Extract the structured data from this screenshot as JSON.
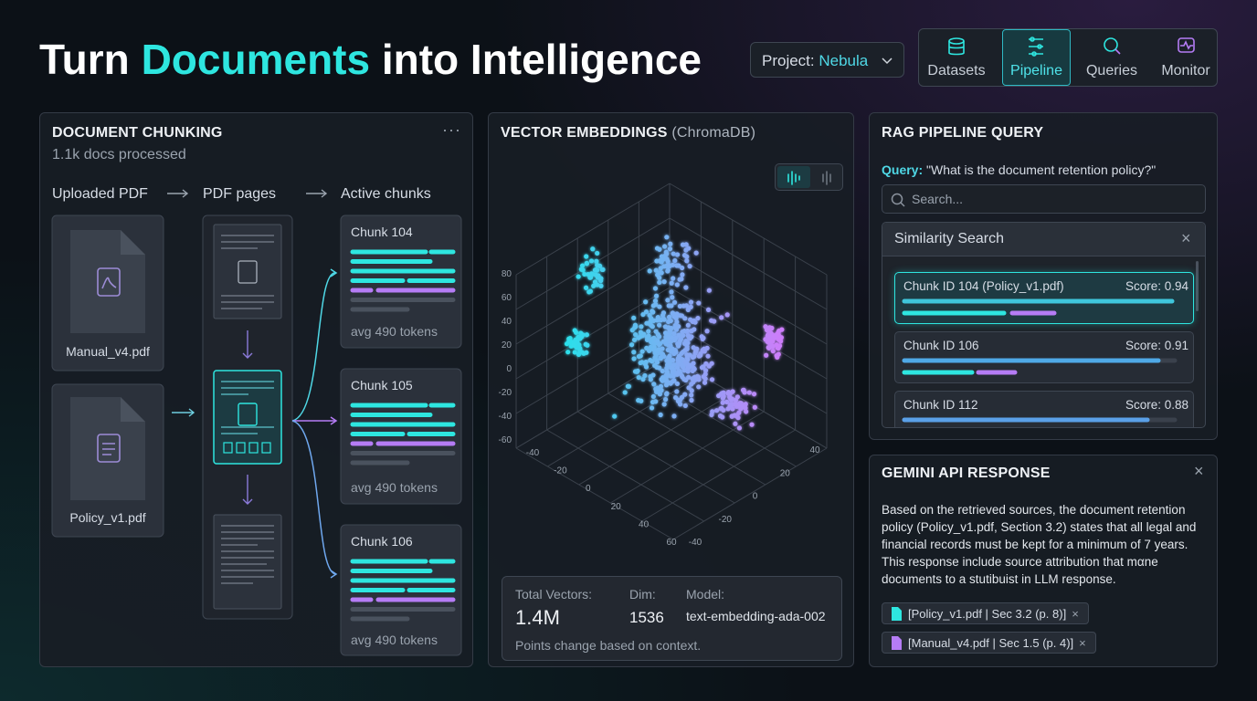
{
  "header": {
    "title_parts": [
      "Turn ",
      "Documents",
      " into Intelligence"
    ],
    "project_label": "Project:",
    "project_value": "Nebula",
    "nav": [
      "Datasets",
      "Pipeline",
      "Queries",
      "Monitor"
    ]
  },
  "chunking": {
    "title": "DOCUMENT CHUNKING",
    "subtitle": "1.1k docs processed",
    "steps": [
      "Uploaded PDF",
      "PDF pages",
      "Active chunks"
    ],
    "files": [
      "Manual_v4.pdf",
      "Policy_v1.pdf"
    ],
    "chunks": [
      {
        "label": "Chunk 104",
        "tokens": "avg 490 tokens"
      },
      {
        "label": "Chunk 105",
        "tokens": "avg 490 tokens"
      },
      {
        "label": "Chunk 106",
        "tokens": "avg 490 tokens"
      }
    ]
  },
  "embeddings": {
    "title": "VECTOR EMBEDDINGS",
    "title_suffix": "(ChromaDB)",
    "z_ticks": [
      80,
      60,
      40,
      20,
      0,
      -20,
      -40,
      -60
    ],
    "x_ticks": [
      -40,
      -20,
      0,
      20,
      40,
      60
    ],
    "y_ticks": [
      40,
      20,
      0,
      -20,
      -40
    ],
    "stats": [
      {
        "label": "Total Vectors:",
        "value": "1.4M"
      },
      {
        "label": "Dim:",
        "value": "1536"
      },
      {
        "label": "Model:",
        "value": "text-embedding-ada-002"
      }
    ],
    "note": "Points change based on context."
  },
  "rag": {
    "title": "RAG PIPELINE QUERY",
    "query_label": "Query:",
    "query": "\"What is the document retention policy?\"",
    "search_placeholder": "Search...",
    "panel_title": "Similarity Search",
    "results": [
      {
        "id": "Chunk ID 104 (Policy_v1.pdf)",
        "score": "Score: 0.94"
      },
      {
        "id": "Chunk ID 106",
        "score": "Score: 0.91"
      },
      {
        "id": "Chunk ID 112",
        "score": "Score: 0.88"
      }
    ]
  },
  "gemini": {
    "title": "GEMINI API RESPONSE",
    "text": "Based on the retrieved sources, the document retention policy (Policy_v1.pdf, Section 3.2) states that all legal and financial records must be kept for a minimum of 7 years. This response include source attribution that mαne documents to a stutibuist in LLM response.",
    "sources": [
      "[Policy_v1.pdf | Sec 3.2 (p. 8)]",
      "[Manual_v4.pdf | Sec 1.5 (p. 4)]"
    ]
  }
}
